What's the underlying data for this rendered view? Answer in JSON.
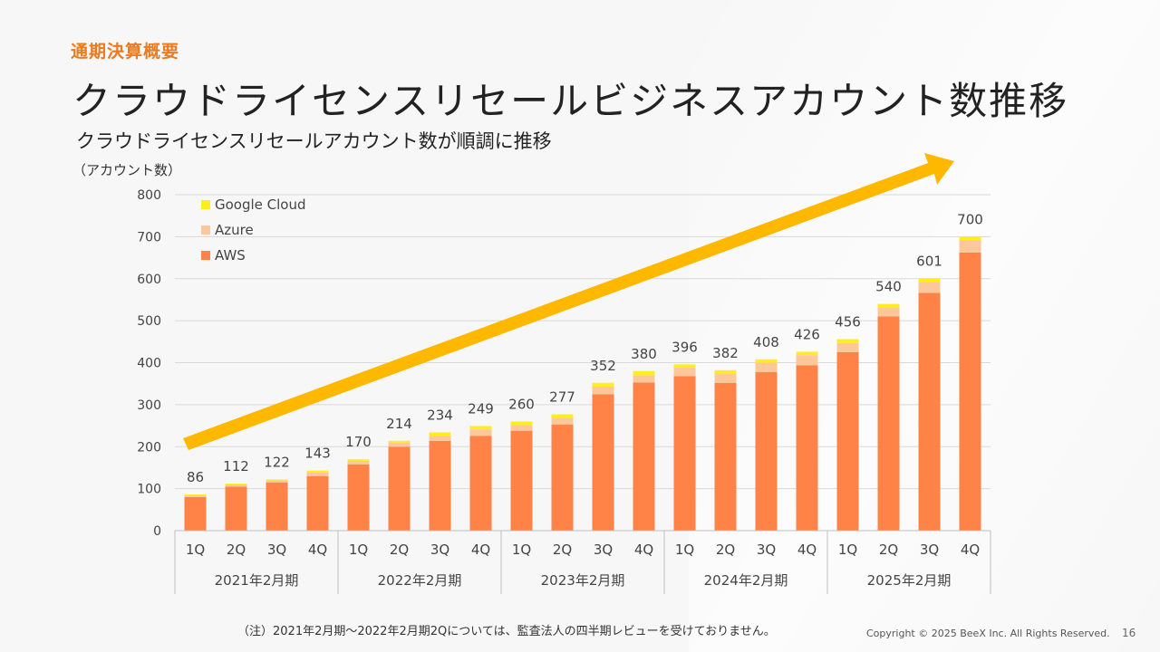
{
  "header": {
    "section": "通期決算概要",
    "title": "クラウドライセンスリセールビジネスアカウント数推移",
    "subtitle": "クラウドライセンスリセールアカウント数が順調に推移"
  },
  "footer": {
    "note": "（注）2021年2月期〜2022年2月期2Qについては、監査法人の四半期レビューを受けておりません。",
    "copyright": "Copyright © 2025 BeeX Inc. All Rights Reserved.",
    "page": "16"
  },
  "chart_data": {
    "type": "bar",
    "stacked": true,
    "ylabel": "（アカウント数）",
    "ylim": [
      0,
      800
    ],
    "yticks": [
      0,
      100,
      200,
      300,
      400,
      500,
      600,
      700,
      800
    ],
    "grid": true,
    "legend_position": "top-left",
    "categories": [
      "1Q",
      "2Q",
      "3Q",
      "4Q",
      "1Q",
      "2Q",
      "3Q",
      "4Q",
      "1Q",
      "2Q",
      "3Q",
      "4Q",
      "1Q",
      "2Q",
      "3Q",
      "4Q",
      "1Q",
      "2Q",
      "3Q",
      "4Q"
    ],
    "groups": [
      {
        "label": "2021年2月期",
        "count": 4
      },
      {
        "label": "2022年2月期",
        "count": 4
      },
      {
        "label": "2023年2月期",
        "count": 4
      },
      {
        "label": "2024年2月期",
        "count": 4
      },
      {
        "label": "2025年2月期",
        "count": 4
      }
    ],
    "series": [
      {
        "name": "AWS",
        "color": "#ff8347",
        "values": [
          80,
          105,
          115,
          130,
          158,
          200,
          214,
          226,
          238,
          253,
          325,
          353,
          368,
          352,
          378,
          394,
          425,
          510,
          566,
          662
        ]
      },
      {
        "name": "Azure",
        "color": "#fcc89b",
        "values": [
          4,
          5,
          5,
          8,
          8,
          10,
          12,
          15,
          14,
          16,
          18,
          17,
          20,
          22,
          22,
          24,
          22,
          22,
          26,
          30
        ]
      },
      {
        "name": "Google Cloud",
        "color": "#ffee1c",
        "values": [
          2,
          2,
          2,
          5,
          4,
          4,
          8,
          8,
          8,
          8,
          9,
          10,
          8,
          8,
          8,
          8,
          9,
          8,
          9,
          8
        ]
      }
    ],
    "totals": [
      86,
      112,
      122,
      143,
      170,
      214,
      234,
      249,
      260,
      277,
      352,
      380,
      396,
      382,
      408,
      426,
      456,
      540,
      601,
      700
    ],
    "legend_order": [
      "Google Cloud",
      "Azure",
      "AWS"
    ],
    "trend_arrow_color": "#ffb800"
  }
}
